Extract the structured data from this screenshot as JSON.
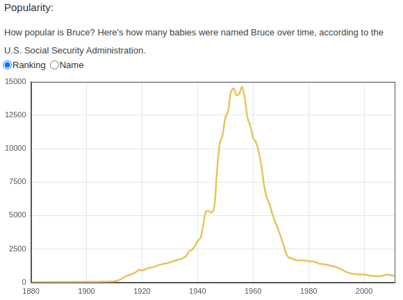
{
  "page": {
    "heading": "Popularity:",
    "description": "How popular is Bruce? Here's how many babies were named Bruce over time, according to the U.S. Social Security Administration.",
    "options": [
      "Ranking",
      "Name"
    ],
    "selected": "Ranking"
  },
  "chart_data": {
    "type": "line",
    "color": "#e8c35a",
    "grid": true,
    "x": [
      1880,
      1890,
      1900,
      1905,
      1910,
      1912,
      1914,
      1916,
      1918,
      1919,
      1920,
      1922,
      1924,
      1926,
      1928,
      1930,
      1932,
      1934,
      1936,
      1937,
      1938,
      1939,
      1940,
      1941,
      1942,
      1943,
      1944,
      1945,
      1946,
      1947,
      1948,
      1949,
      1950,
      1951,
      1952,
      1953,
      1954,
      1955,
      1956,
      1957,
      1958,
      1959,
      1960,
      1961,
      1962,
      1963,
      1964,
      1965,
      1966,
      1967,
      1968,
      1969,
      1970,
      1971,
      1972,
      1973,
      1974,
      1975,
      1976,
      1978,
      1980,
      1982,
      1984,
      1986,
      1988,
      1990,
      1992,
      1994,
      1996,
      1998,
      2000,
      2002,
      2004,
      2006,
      2008,
      2010,
      2011
    ],
    "values": [
      30,
      40,
      50,
      60,
      90,
      200,
      450,
      600,
      800,
      950,
      900,
      1050,
      1150,
      1300,
      1400,
      1500,
      1650,
      1750,
      2000,
      2350,
      2450,
      2700,
      3100,
      3300,
      4200,
      5300,
      5350,
      5200,
      5600,
      8300,
      10400,
      11000,
      12300,
      12800,
      14200,
      14500,
      14000,
      14100,
      14600,
      13800,
      12300,
      11700,
      10800,
      10500,
      9800,
      8700,
      7200,
      6300,
      5800,
      5100,
      4500,
      4000,
      3400,
      2800,
      2100,
      1850,
      1800,
      1700,
      1650,
      1650,
      1600,
      1550,
      1400,
      1350,
      1250,
      1150,
      950,
      750,
      650,
      600,
      600,
      520,
      480,
      470,
      580,
      530,
      480
    ],
    "xlim": [
      1880,
      2011
    ],
    "xticks": [
      1880,
      1900,
      1920,
      1940,
      1960,
      1980,
      2000
    ],
    "ylim": [
      0,
      15000
    ],
    "yticks": [
      0,
      2500,
      5000,
      7500,
      10000,
      12500,
      15000
    ]
  }
}
